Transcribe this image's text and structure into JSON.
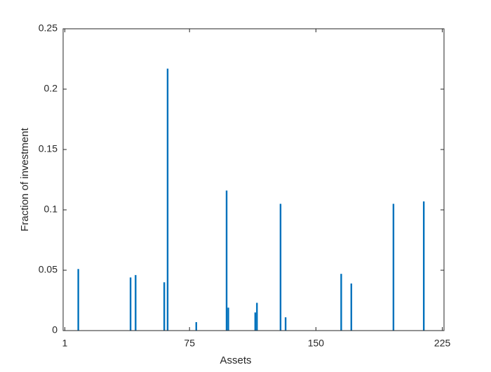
{
  "chart_data": {
    "type": "bar",
    "xlabel": "Assets",
    "ylabel": "Fraction of investment",
    "x": [
      9,
      40,
      43,
      60,
      62,
      79,
      97,
      98,
      114,
      115,
      129,
      132,
      165,
      171,
      196,
      214
    ],
    "values": [
      0.051,
      0.044,
      0.046,
      0.04,
      0.217,
      0.007,
      0.116,
      0.019,
      0.015,
      0.023,
      0.105,
      0.011,
      0.047,
      0.039,
      0.105,
      0.107
    ],
    "color": "#0072bd",
    "xlim": [
      0,
      226
    ],
    "xticks": [
      1,
      75,
      150,
      225
    ],
    "ylim": [
      0,
      0.25
    ],
    "yticks": [
      0,
      0.05,
      0.1,
      0.15,
      0.2,
      0.25
    ],
    "box": true
  }
}
